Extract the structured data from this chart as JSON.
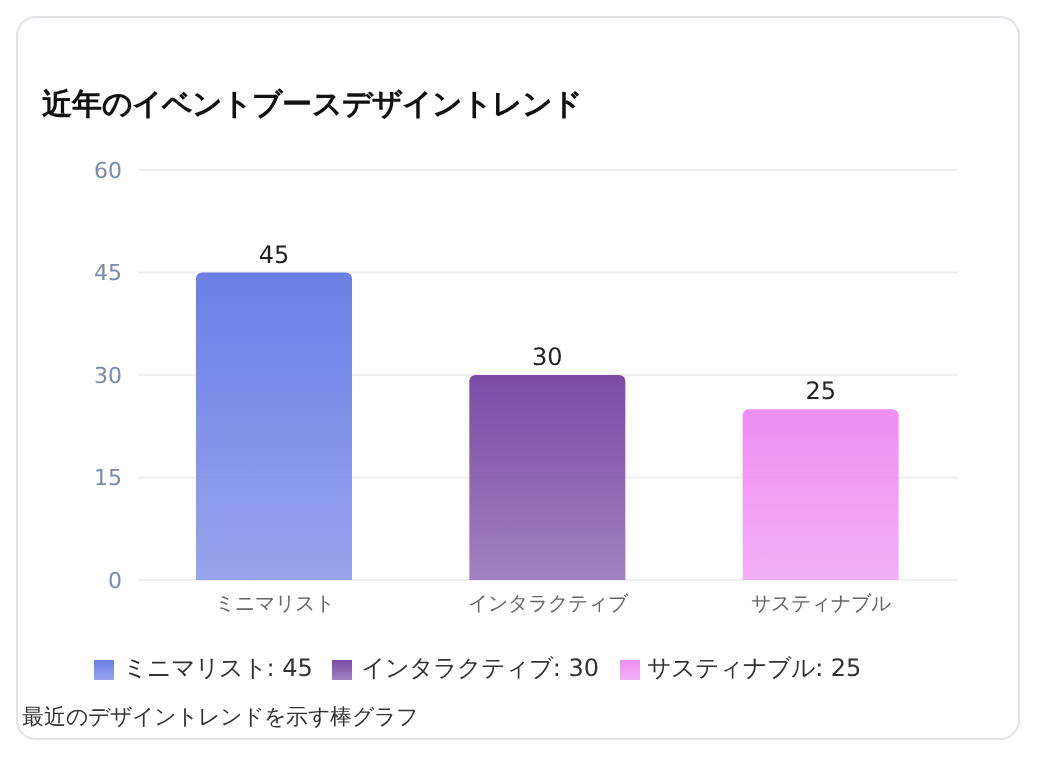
{
  "chart_data": {
    "type": "bar",
    "title": "近年のイベントブースデザイントレンド",
    "categories": [
      "ミニマリスト",
      "インタラクティブ",
      "サスティナブル"
    ],
    "stacked": true,
    "series": [
      {
        "name": "ミニマリスト: 45",
        "color": "#6b7fe6",
        "values": [
          45,
          null,
          null
        ]
      },
      {
        "name": "インタラクティブ: 30",
        "color": "#7b4ba6",
        "values": [
          null,
          30,
          null
        ]
      },
      {
        "name": "サスティナブル: 25",
        "color": "#ee8ef2",
        "values": [
          null,
          null,
          25
        ]
      }
    ],
    "ylim": [
      0,
      60
    ],
    "yticks": [
      0,
      15,
      30,
      45,
      60
    ],
    "grid": "y",
    "data_labels": true,
    "legend": "bottom",
    "annotations": [
      "最近のデザイントレンドを示す棒グラフ"
    ]
  }
}
